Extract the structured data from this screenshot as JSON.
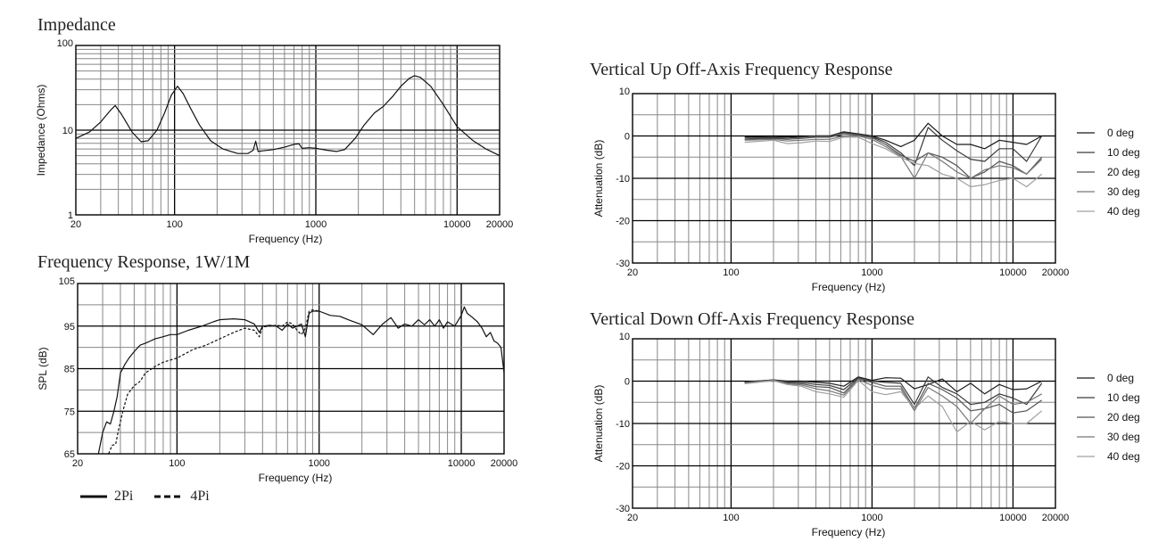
{
  "titles": {
    "impedance": "Impedance",
    "spl": "Frequency Response, 1W/1M",
    "up": "Vertical Up Off-Axis Frequency Response",
    "down": "Vertical Down Off-Axis Frequency Response"
  },
  "legend_spl": [
    {
      "label": "2Pi",
      "style": "solid"
    },
    {
      "label": "4Pi",
      "style": "dashed"
    }
  ],
  "legend_offaxis": [
    "0 deg",
    "10 deg",
    "20 deg",
    "30 deg",
    "40 deg"
  ],
  "chart_data": [
    {
      "id": "impedance",
      "type": "line",
      "title": "Impedance",
      "xlabel": "Frequency (Hz)",
      "ylabel": "Impedance (Ohms)",
      "xscale": "log",
      "yscale": "log",
      "xlim": [
        20,
        20000
      ],
      "ylim": [
        1,
        100
      ],
      "xticks": [
        "20",
        "100",
        "1000",
        "10000",
        "20000"
      ],
      "yticks": [
        "1",
        "10",
        "100"
      ],
      "grid": true,
      "series": [
        {
          "name": "Impedance",
          "x": [
            20,
            25,
            30,
            35,
            38,
            42,
            50,
            58,
            65,
            75,
            85,
            95,
            105,
            115,
            130,
            150,
            180,
            220,
            280,
            330,
            360,
            375,
            390,
            420,
            500,
            600,
            700,
            760,
            800,
            900,
            1000,
            1200,
            1400,
            1600,
            1900,
            2200,
            2600,
            3000,
            3500,
            4000,
            4600,
            5000,
            5500,
            6500,
            8000,
            10000,
            13000,
            16000,
            20000
          ],
          "y": [
            8,
            9.5,
            12.5,
            17,
            19.5,
            15.5,
            9.5,
            7.3,
            7.5,
            10,
            16,
            26,
            33,
            27,
            18,
            11.5,
            7.5,
            6,
            5.3,
            5.3,
            5.8,
            7.4,
            5.6,
            5.7,
            5.9,
            6.3,
            6.8,
            6.9,
            6.1,
            6.2,
            6.1,
            5.8,
            5.6,
            5.9,
            8,
            11.5,
            16,
            19,
            25,
            33,
            41,
            44,
            42,
            33,
            20,
            11,
            7.5,
            6,
            5
          ]
        }
      ]
    },
    {
      "id": "spl",
      "type": "line",
      "title": "Frequency Response, 1W/1M",
      "xlabel": "Frequency (Hz)",
      "ylabel": "SPL (dB)",
      "xscale": "log",
      "xlim": [
        20,
        20000
      ],
      "ylim": [
        65,
        105
      ],
      "xticks": [
        "20",
        "100",
        "1000",
        "10000",
        "20000"
      ],
      "yticks": [
        "65",
        "75",
        "85",
        "95",
        "105"
      ],
      "grid": true,
      "legend_position": "bottom-left",
      "series": [
        {
          "name": "2Pi",
          "style": "solid",
          "x": [
            28,
            30,
            32,
            34,
            36,
            38,
            40,
            43,
            46,
            50,
            55,
            60,
            65,
            70,
            80,
            90,
            100,
            120,
            150,
            180,
            200,
            250,
            300,
            350,
            380,
            400,
            450,
            500,
            550,
            600,
            650,
            700,
            750,
            800,
            850,
            900,
            1000,
            1200,
            1400,
            1600,
            2000,
            2400,
            2800,
            3200,
            3600,
            4000,
            4500,
            5000,
            5500,
            6000,
            6500,
            7000,
            7500,
            8000,
            9000,
            10000,
            10500,
            11000,
            12000,
            13000,
            14000,
            15000,
            16000,
            17000,
            18000,
            19000,
            20000
          ],
          "y": [
            65,
            70,
            72.5,
            72,
            75,
            78.5,
            84,
            86,
            87.5,
            89,
            90.5,
            91,
            91.5,
            92,
            92.5,
            93,
            93,
            94,
            95,
            96,
            96.5,
            96.7,
            96.5,
            95.5,
            93.5,
            95,
            95.2,
            95,
            94,
            95.5,
            94.5,
            95,
            95.5,
            92.5,
            98,
            98.5,
            98.5,
            97.5,
            97.3,
            96.5,
            95.3,
            93,
            95.5,
            97,
            94.5,
            95.5,
            95,
            96.5,
            95.3,
            96.5,
            95,
            96.5,
            94.5,
            96,
            95,
            97.5,
            99.5,
            98,
            97,
            96,
            94.5,
            92.5,
            93.5,
            91.5,
            91,
            90,
            84
          ]
        },
        {
          "name": "4Pi",
          "style": "dashed",
          "x": [
            33,
            35,
            37,
            39,
            42,
            45,
            50,
            55,
            60,
            70,
            80,
            100,
            130,
            160,
            200,
            250,
            300,
            350,
            380,
            400,
            450,
            500,
            550,
            600,
            650,
            700,
            750,
            800,
            850,
            900,
            1000
          ],
          "y": [
            65,
            67,
            67.2,
            71,
            75.5,
            79,
            81,
            82,
            84,
            85.5,
            86.5,
            87.5,
            89.5,
            90.5,
            92,
            93.5,
            94.5,
            94,
            92.5,
            94.8,
            95,
            95.2,
            95,
            96,
            95.5,
            94,
            93,
            94.5,
            98.5,
            98.8,
            98.5
          ]
        }
      ]
    },
    {
      "id": "vertical_up",
      "type": "line",
      "title": "Vertical Up Off-Axis Frequency Response",
      "xlabel": "Frequency (Hz)",
      "ylabel": "Attenuation (dB)",
      "xscale": "log",
      "xlim": [
        20,
        20000
      ],
      "ylim": [
        -30,
        10
      ],
      "xticks": [
        "20",
        "100",
        "1000",
        "10000",
        "20000"
      ],
      "yticks": [
        "-30",
        "-20",
        "-10",
        "0",
        "10"
      ],
      "grid": true,
      "legend_position": "right",
      "x": [
        125,
        200,
        250,
        315,
        400,
        500,
        630,
        800,
        1000,
        1250,
        1600,
        2000,
        2500,
        3150,
        4000,
        5000,
        6300,
        8000,
        10000,
        12500,
        16000
      ],
      "series": [
        {
          "name": "0 deg",
          "color": "#1a1a1a",
          "values": [
            -0.2,
            -0.3,
            -0.2,
            -0.2,
            0,
            0,
            1,
            0.5,
            0,
            -1,
            -2.5,
            -1,
            3,
            0,
            -2,
            -2,
            -3,
            -1,
            -1.5,
            -2,
            0
          ]
        },
        {
          "name": "10 deg",
          "color": "#3a3a3a",
          "values": [
            -0.5,
            -0.5,
            -0.5,
            -0.3,
            0,
            0,
            0.8,
            0.4,
            -0.2,
            -1.5,
            -4,
            -7,
            2,
            -1,
            -3.5,
            -5.5,
            -6,
            -3,
            -3,
            -6,
            0
          ]
        },
        {
          "name": "20 deg",
          "color": "#555555",
          "values": [
            -0.8,
            -0.6,
            -0.8,
            -0.6,
            -0.3,
            -0.3,
            0.5,
            0.2,
            -0.4,
            -2,
            -4.5,
            -6,
            -4,
            -5,
            -7,
            -10,
            -8.5,
            -6,
            -7,
            -9,
            -5
          ]
        },
        {
          "name": "30 deg",
          "color": "#777777",
          "values": [
            -1,
            -0.8,
            -1.2,
            -1,
            -0.8,
            -0.8,
            0,
            0,
            -0.8,
            -2.5,
            -4.8,
            -10,
            -4,
            -6,
            -8.5,
            -10,
            -8,
            -7,
            -7.5,
            -9,
            -5.5
          ]
        },
        {
          "name": "40 deg",
          "color": "#a0a0a0",
          "values": [
            -1.5,
            -1,
            -1.8,
            -1.6,
            -1.2,
            -1.3,
            -0.3,
            -0.3,
            -1.8,
            -3,
            -5,
            -6.5,
            -7,
            -9,
            -10,
            -12,
            -11.5,
            -10.5,
            -10,
            -12,
            -9
          ]
        }
      ]
    },
    {
      "id": "vertical_down",
      "type": "line",
      "title": "Vertical Down Off-Axis Frequency Response",
      "xlabel": "Frequency (Hz)",
      "ylabel": "Attenuation (dB)",
      "xscale": "log",
      "xlim": [
        20,
        20000
      ],
      "ylim": [
        -30,
        10
      ],
      "xticks": [
        "20",
        "100",
        "1000",
        "10000",
        "20000"
      ],
      "yticks": [
        "-30",
        "-20",
        "-10",
        "0",
        "10"
      ],
      "grid": true,
      "legend_position": "right",
      "x": [
        125,
        200,
        250,
        315,
        400,
        500,
        630,
        800,
        1000,
        1250,
        1600,
        2000,
        2500,
        3150,
        4000,
        5000,
        6300,
        8000,
        10000,
        12500,
        16000
      ],
      "series": [
        {
          "name": "0 deg",
          "color": "#1a1a1a",
          "values": [
            -0.2,
            0.3,
            0,
            0,
            -0.3,
            -0.5,
            -1.2,
            1,
            0.2,
            0.8,
            0.7,
            -1.8,
            -0.8,
            0.5,
            -2.5,
            -0.5,
            -3,
            -0.8,
            -2,
            -1.8,
            0
          ]
        },
        {
          "name": "10 deg",
          "color": "#3a3a3a",
          "values": [
            -0.3,
            0.3,
            -0.2,
            -0.3,
            -0.8,
            -1,
            -2,
            0.8,
            0,
            -0.3,
            -0.5,
            -5.5,
            1,
            -1.5,
            -3,
            -5.5,
            -5,
            -3,
            -4,
            -5.5,
            -0.5
          ]
        },
        {
          "name": "20 deg",
          "color": "#555555",
          "values": [
            -0.4,
            0.2,
            -0.4,
            -0.6,
            -1.3,
            -1.5,
            -2.8,
            0.6,
            -0.3,
            -1.2,
            -1.2,
            -6.5,
            -0.5,
            -2,
            -4,
            -7,
            -6.5,
            -5.5,
            -7.5,
            -7,
            -4.5
          ]
        },
        {
          "name": "30 deg",
          "color": "#777777",
          "values": [
            -0.5,
            0.2,
            -0.6,
            -0.9,
            -1.8,
            -2.3,
            -3.3,
            0.4,
            -1,
            -1.8,
            -1.8,
            -7,
            -1.5,
            -3.5,
            -6,
            -10,
            -6.5,
            -3.5,
            -5.5,
            -5,
            -3
          ]
        },
        {
          "name": "40 deg",
          "color": "#a0a0a0",
          "values": [
            -0.6,
            0.1,
            -0.8,
            -1.2,
            -2.5,
            -3,
            -3.8,
            0.2,
            -2.5,
            -3.2,
            -2.5,
            -6.5,
            -3.5,
            -6,
            -12,
            -9.5,
            -11.5,
            -9.5,
            -10,
            -10,
            -7
          ]
        }
      ]
    }
  ]
}
